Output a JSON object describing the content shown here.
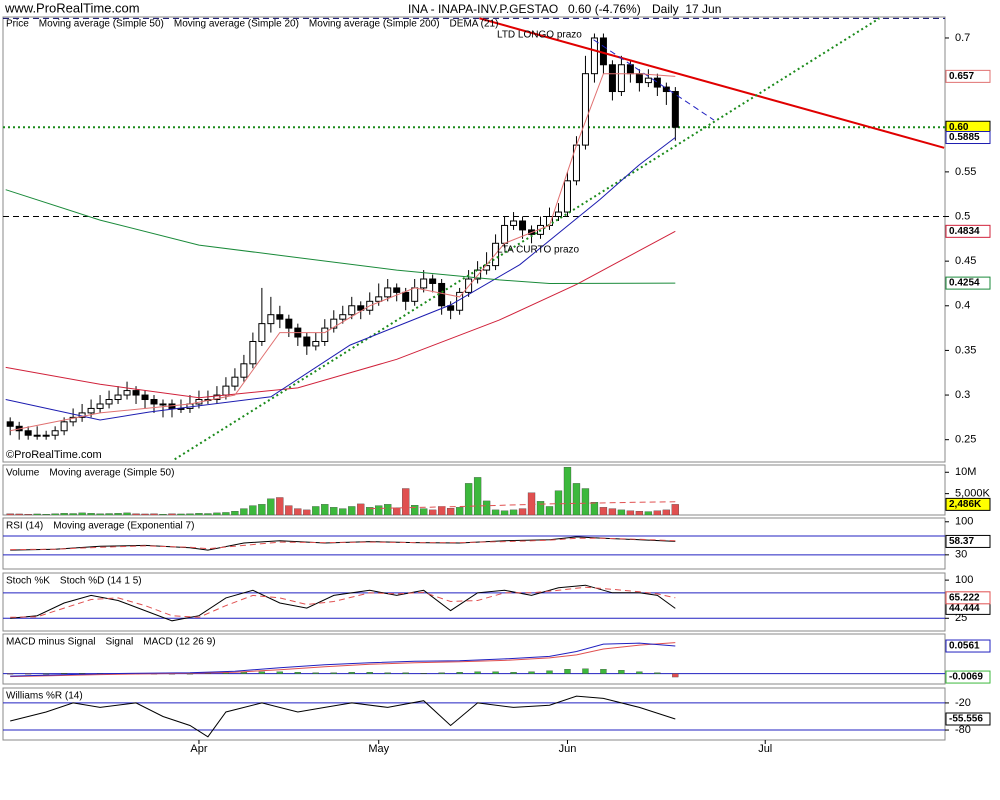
{
  "header": {
    "site": "www.ProRealTime.com",
    "title": "INA - INAPA-INV.P.GESTAO",
    "quote": "0.60 (-4.76%)",
    "period": "Daily  17 Jun",
    "copyright": "©ProRealTime.com"
  },
  "chart_data": [
    {
      "type": "candlestick",
      "name": "Price",
      "ylim": [
        0.225,
        0.7235
      ],
      "yticks": [
        0.25,
        0.3,
        0.35,
        0.4,
        0.45,
        0.5,
        0.55,
        0.7
      ],
      "up_color": "#ffffff",
      "down_color": "#000000",
      "close_label": "0.60",
      "close_label_bg": "#ffff00",
      "open": [
        0.27,
        0.265,
        0.26,
        0.255,
        0.255,
        0.255,
        0.26,
        0.27,
        0.275,
        0.28,
        0.285,
        0.29,
        0.295,
        0.3,
        0.305,
        0.3,
        0.295,
        0.29,
        0.29,
        0.285,
        0.285,
        0.29,
        0.295,
        0.295,
        0.3,
        0.31,
        0.32,
        0.335,
        0.36,
        0.38,
        0.39,
        0.385,
        0.375,
        0.365,
        0.355,
        0.36,
        0.375,
        0.385,
        0.39,
        0.4,
        0.395,
        0.405,
        0.41,
        0.42,
        0.415,
        0.405,
        0.42,
        0.43,
        0.425,
        0.4,
        0.395,
        0.415,
        0.43,
        0.44,
        0.445,
        0.47,
        0.49,
        0.495,
        0.485,
        0.48,
        0.49,
        0.5,
        0.505,
        0.54,
        0.58,
        0.66,
        0.7,
        0.67,
        0.64,
        0.67,
        0.66,
        0.65,
        0.655,
        0.645,
        0.64
      ],
      "high": [
        0.275,
        0.27,
        0.265,
        0.265,
        0.26,
        0.265,
        0.275,
        0.285,
        0.29,
        0.295,
        0.3,
        0.305,
        0.31,
        0.315,
        0.31,
        0.305,
        0.3,
        0.295,
        0.295,
        0.295,
        0.3,
        0.305,
        0.305,
        0.31,
        0.32,
        0.33,
        0.345,
        0.37,
        0.42,
        0.41,
        0.4,
        0.39,
        0.38,
        0.37,
        0.37,
        0.385,
        0.395,
        0.4,
        0.41,
        0.405,
        0.415,
        0.425,
        0.43,
        0.425,
        0.42,
        0.43,
        0.44,
        0.435,
        0.43,
        0.405,
        0.42,
        0.44,
        0.45,
        0.46,
        0.48,
        0.5,
        0.505,
        0.5,
        0.49,
        0.5,
        0.51,
        0.515,
        0.55,
        0.59,
        0.68,
        0.705,
        0.705,
        0.675,
        0.68,
        0.675,
        0.665,
        0.665,
        0.66,
        0.65,
        0.645
      ],
      "low": [
        0.255,
        0.25,
        0.25,
        0.25,
        0.25,
        0.25,
        0.255,
        0.265,
        0.27,
        0.275,
        0.28,
        0.285,
        0.29,
        0.295,
        0.29,
        0.285,
        0.28,
        0.275,
        0.275,
        0.28,
        0.28,
        0.285,
        0.29,
        0.29,
        0.295,
        0.305,
        0.315,
        0.33,
        0.355,
        0.37,
        0.375,
        0.365,
        0.355,
        0.345,
        0.35,
        0.355,
        0.37,
        0.38,
        0.385,
        0.385,
        0.39,
        0.4,
        0.405,
        0.405,
        0.395,
        0.4,
        0.415,
        0.415,
        0.39,
        0.385,
        0.39,
        0.41,
        0.425,
        0.435,
        0.44,
        0.465,
        0.485,
        0.475,
        0.47,
        0.475,
        0.485,
        0.495,
        0.5,
        0.535,
        0.575,
        0.65,
        0.66,
        0.63,
        0.635,
        0.65,
        0.64,
        0.645,
        0.635,
        0.625,
        0.585
      ],
      "close": [
        0.265,
        0.26,
        0.255,
        0.255,
        0.255,
        0.26,
        0.27,
        0.275,
        0.28,
        0.285,
        0.29,
        0.295,
        0.3,
        0.305,
        0.3,
        0.295,
        0.29,
        0.29,
        0.285,
        0.285,
        0.29,
        0.295,
        0.295,
        0.3,
        0.31,
        0.32,
        0.335,
        0.36,
        0.38,
        0.39,
        0.385,
        0.375,
        0.365,
        0.355,
        0.36,
        0.375,
        0.385,
        0.39,
        0.4,
        0.395,
        0.405,
        0.41,
        0.42,
        0.415,
        0.405,
        0.42,
        0.43,
        0.425,
        0.4,
        0.395,
        0.415,
        0.43,
        0.44,
        0.445,
        0.47,
        0.49,
        0.495,
        0.485,
        0.48,
        0.49,
        0.5,
        0.505,
        0.54,
        0.58,
        0.66,
        0.7,
        0.67,
        0.64,
        0.67,
        0.66,
        0.65,
        0.655,
        0.645,
        0.64,
        0.6
      ],
      "series": [
        {
          "name": "Moving average (Simple 50)",
          "color": "#d0213a",
          "x": [
            -0.5,
            10,
            21,
            32,
            43,
            54.4,
            63,
            74
          ],
          "values": [
            0.331,
            0.312,
            0.297,
            0.308,
            0.34,
            0.384,
            0.424,
            0.4834
          ],
          "last_label": "0.4834"
        },
        {
          "name": "Moving average (Simple 20)",
          "color": "#1c1cb0",
          "x": [
            -0.5,
            10,
            15.5,
            29,
            37.8,
            49,
            56.7,
            65.6,
            70,
            74
          ],
          "values": [
            0.295,
            0.272,
            0.281,
            0.298,
            0.356,
            0.401,
            0.446,
            0.519,
            0.558,
            0.5885
          ],
          "last_label": "0.5885"
        },
        {
          "name": "Moving average (Simple 200)",
          "color": "#1a8a3a",
          "x": [
            -0.5,
            10,
            21,
            32,
            43,
            54.4,
            60,
            74
          ],
          "values": [
            0.53,
            0.496,
            0.468,
            0.454,
            0.44,
            0.429,
            0.425,
            0.4254
          ],
          "last_label": "0.4254"
        },
        {
          "name": "DEMA (21)",
          "color": "#e07070",
          "x": [
            0,
            10,
            20,
            25,
            30,
            35,
            40,
            45,
            50,
            55,
            60,
            63,
            66,
            70,
            74
          ],
          "values": [
            0.26,
            0.28,
            0.29,
            0.3,
            0.37,
            0.37,
            0.4,
            0.42,
            0.41,
            0.47,
            0.49,
            0.58,
            0.66,
            0.66,
            0.657
          ],
          "last_label": "0.657"
        }
      ],
      "hlines": [
        {
          "value": 0.6,
          "color": "#1a8a1a",
          "style": "dotted"
        },
        {
          "value": 0.5,
          "color": "#000000",
          "style": "dashed"
        },
        {
          "value": 0.722,
          "color": "#000060",
          "style": "dashed"
        }
      ],
      "trendlines": [
        {
          "label": "LTD LONGO prazo",
          "color": "#e00000",
          "x": [
            52.2,
            103.9
          ],
          "values": [
            0.722,
            0.577
          ]
        },
        {
          "label": "LTA CURTO prazo",
          "color": "#1a8a1a",
          "style": "dotted",
          "x": [
            18.3,
            96.7
          ],
          "values": [
            0.228,
            0.722
          ]
        },
        {
          "color": "#2020c0",
          "style": "dashed",
          "x": [
            64.9,
            78.3
          ],
          "values": [
            0.698,
            0.608
          ]
        }
      ]
    },
    {
      "type": "bar",
      "name": "Volume",
      "ylim": [
        0,
        11700000
      ],
      "yticks": [
        {
          "value": 10000000,
          "label": "10M"
        },
        {
          "value": 5000000,
          "label": "5,000K"
        }
      ],
      "up_color": "#3cb83c",
      "down_color": "#e05050",
      "value_label": "2,486K",
      "value_label_bg": "#ffff00",
      "values": [
        300000,
        250000,
        200000,
        250000,
        200000,
        300000,
        400000,
        350000,
        500000,
        400000,
        300000,
        350000,
        400000,
        500000,
        300000,
        250000,
        300000,
        200000,
        300000,
        250000,
        300000,
        400000,
        350000,
        500000,
        600000,
        900000,
        1500000,
        2200000,
        2500000,
        3800000,
        4100000,
        2200000,
        1500000,
        1200000,
        2000000,
        2500000,
        1800000,
        1500000,
        2000000,
        2600000,
        1800000,
        2200000,
        2500000,
        1700000,
        6200000,
        2300000,
        1500000,
        1200000,
        2000000,
        1600000,
        1800000,
        7400000,
        8800000,
        3300000,
        1200000,
        1000000,
        1200000,
        1500000,
        5200000,
        3200000,
        2000000,
        5700000,
        11200000,
        7400000,
        6200000,
        3000000,
        1800000,
        1500000,
        1200000,
        1000000,
        900000,
        800000,
        1000000,
        1200000,
        2486000
      ],
      "series": [
        {
          "name": "Moving average (Simple 50)",
          "color": "#e05050",
          "style": "dashed",
          "x": [
            40,
            50,
            60,
            70,
            74
          ],
          "values": [
            1500000,
            2000000,
            2600000,
            3000000,
            3100000
          ]
        }
      ]
    },
    {
      "type": "line",
      "ylim": [
        0,
        108
      ],
      "yticks": [
        100,
        30
      ],
      "hlines": [
        {
          "value": 70,
          "color": "#2020c0"
        },
        {
          "value": 30,
          "color": "#2020c0"
        }
      ],
      "series": [
        {
          "name": "RSI (14)",
          "color": "#000000",
          "x": [
            0,
            5,
            10,
            15,
            20,
            22,
            26,
            30,
            35,
            40,
            45,
            50,
            55,
            60,
            63,
            66,
            70,
            74
          ],
          "values": [
            40,
            42,
            48,
            50,
            45,
            40,
            55,
            60,
            55,
            58,
            56,
            55,
            60,
            62,
            68,
            65,
            62,
            58.37
          ],
          "last_label": "58.37"
        },
        {
          "name": "Moving average (Exponential 7)",
          "color": "#e05050",
          "style": "dashed",
          "x": [
            0,
            5,
            10,
            15,
            20,
            22,
            26,
            30,
            35,
            40,
            45,
            50,
            55,
            60,
            63,
            66,
            70,
            74
          ],
          "values": [
            41,
            42,
            46,
            49,
            46,
            43,
            50,
            57,
            56,
            57,
            56,
            56,
            58,
            61,
            65,
            65,
            63,
            60
          ]
        }
      ]
    },
    {
      "type": "line",
      "ylim": [
        0,
        114
      ],
      "yticks": [
        100,
        25
      ],
      "hlines": [
        {
          "value": 75,
          "color": "#2020c0"
        },
        {
          "value": 25,
          "color": "#2020c0"
        }
      ],
      "series": [
        {
          "name": "Stoch %K",
          "color": "#000000",
          "x": [
            0,
            3,
            6,
            9,
            12,
            15,
            18,
            21,
            24,
            27,
            30,
            33,
            36,
            40,
            43,
            46,
            49,
            52,
            55,
            58,
            61,
            64,
            67,
            70,
            72,
            74
          ],
          "values": [
            25,
            30,
            55,
            70,
            60,
            40,
            20,
            30,
            65,
            80,
            55,
            45,
            70,
            80,
            70,
            80,
            40,
            75,
            80,
            70,
            85,
            90,
            75,
            75,
            70,
            44.444
          ],
          "last_label": "44.444"
        },
        {
          "name": "Stoch %D (14 1 5)",
          "color": "#e05050",
          "style": "dashed",
          "x": [
            0,
            3,
            6,
            9,
            12,
            15,
            18,
            21,
            24,
            27,
            30,
            33,
            36,
            40,
            43,
            46,
            49,
            52,
            55,
            58,
            61,
            64,
            67,
            70,
            72,
            74
          ],
          "values": [
            27,
            28,
            45,
            62,
            65,
            50,
            30,
            27,
            50,
            70,
            65,
            52,
            58,
            75,
            73,
            76,
            58,
            60,
            75,
            75,
            80,
            86,
            82,
            77,
            73,
            65.222
          ],
          "last_label": "65.222"
        }
      ]
    },
    {
      "type": "line",
      "ylim": [
        -0.021,
        0.0805
      ],
      "hlines": [
        {
          "value": 0,
          "color": "#2020c0"
        }
      ],
      "series": [
        {
          "name": "MACD minus Signal",
          "kind": "bar",
          "color": "#3cb83c",
          "negative_color": "#e05050",
          "x": [
            0,
            2,
            4,
            6,
            8,
            10,
            12,
            14,
            16,
            18,
            20,
            22,
            24,
            26,
            28,
            30,
            32,
            34,
            36,
            38,
            40,
            42,
            44,
            46,
            48,
            50,
            52,
            54,
            56,
            58,
            60,
            62,
            64,
            66,
            68,
            70,
            72,
            74
          ],
          "values": [
            -0.001,
            -0.001,
            0,
            0.001,
            0.001,
            0.001,
            0,
            -0.001,
            -0.001,
            -0.001,
            0,
            0.001,
            0.002,
            0.003,
            0.004,
            0.004,
            0.003,
            0.002,
            0.002,
            0.003,
            0.003,
            0.002,
            0.002,
            0.001,
            0.002,
            0.003,
            0.004,
            0.004,
            0.003,
            0.004,
            0.006,
            0.009,
            0.01,
            0.009,
            0.007,
            0.004,
            0.002,
            -0.0069
          ],
          "last_label": "-0.0069"
        },
        {
          "name": "Signal",
          "color": "#e05050",
          "x": [
            0,
            10,
            20,
            25,
            30,
            35,
            40,
            45,
            50,
            55,
            60,
            63,
            66,
            70,
            74
          ],
          "values": [
            -0.006,
            -0.002,
            0.001,
            0.003,
            0.008,
            0.014,
            0.019,
            0.022,
            0.024,
            0.027,
            0.032,
            0.038,
            0.05,
            0.058,
            0.063
          ]
        },
        {
          "name": "MACD (12 26 9)",
          "color": "#2020c0",
          "x": [
            0,
            10,
            20,
            25,
            30,
            35,
            40,
            45,
            50,
            55,
            60,
            63,
            66,
            70,
            74
          ],
          "values": [
            -0.005,
            0,
            0.002,
            0.005,
            0.012,
            0.018,
            0.022,
            0.025,
            0.026,
            0.03,
            0.035,
            0.045,
            0.06,
            0.062,
            0.0561
          ],
          "last_label": "0.0561"
        }
      ]
    },
    {
      "type": "line",
      "ylim": [
        -102,
        13
      ],
      "yticks": [
        -20,
        -80
      ],
      "xlim": [
        -0.8,
        104
      ],
      "xticks": [
        {
          "value": 21,
          "label": "Apr"
        },
        {
          "value": 41,
          "label": "May"
        },
        {
          "value": 62,
          "label": "Jun"
        },
        {
          "value": 84,
          "label": "Jul"
        }
      ],
      "hlines": [
        {
          "value": -20,
          "color": "#2020c0"
        },
        {
          "value": -80,
          "color": "#2020c0"
        }
      ],
      "series": [
        {
          "name": "Williams %R (14)",
          "color": "#000000",
          "x": [
            0,
            4,
            7,
            10,
            14,
            17,
            20,
            22,
            24,
            28,
            32,
            35,
            38,
            42,
            46,
            49,
            52,
            56,
            60,
            63,
            66,
            70,
            74
          ],
          "values": [
            -60,
            -40,
            -20,
            -30,
            -20,
            -50,
            -70,
            -95,
            -40,
            -20,
            -40,
            -30,
            -20,
            -30,
            -15,
            -70,
            -20,
            -30,
            -25,
            -5,
            -10,
            -30,
            -55.556
          ],
          "last_label": "-55.556"
        }
      ]
    }
  ]
}
